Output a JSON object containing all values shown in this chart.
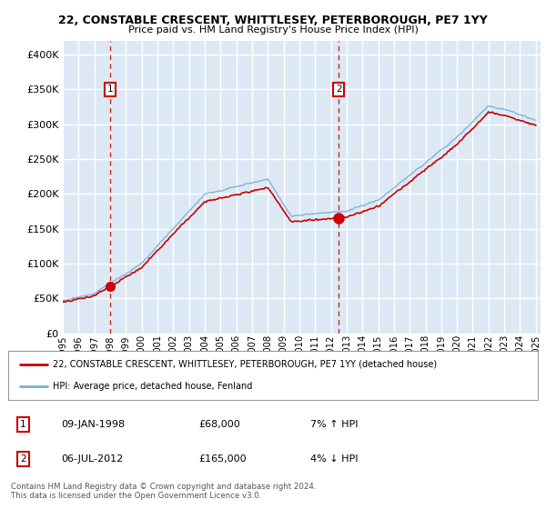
{
  "title": "22, CONSTABLE CRESCENT, WHITTLESEY, PETERBOROUGH, PE7 1YY",
  "subtitle": "Price paid vs. HM Land Registry's House Price Index (HPI)",
  "bg_color": "#dce9f5",
  "grid_color": "#ffffff",
  "sale1_year": 1998.04,
  "sale1_price": 68000,
  "sale2_year": 2012.51,
  "sale2_price": 165000,
  "legend_line1": "22, CONSTABLE CRESCENT, WHITTLESEY, PETERBOROUGH, PE7 1YY (detached house)",
  "legend_line2": "HPI: Average price, detached house, Fenland",
  "annotation1_date": "09-JAN-1998",
  "annotation1_price": "£68,000",
  "annotation1_hpi": "7% ↑ HPI",
  "annotation2_date": "06-JUL-2012",
  "annotation2_price": "£165,000",
  "annotation2_hpi": "4% ↓ HPI",
  "footer": "Contains HM Land Registry data © Crown copyright and database right 2024.\nThis data is licensed under the Open Government Licence v3.0.",
  "red_color": "#cc0000",
  "blue_color": "#7aadd4",
  "dash_color": "#cc0000",
  "ylim": [
    0,
    420000
  ],
  "yticks": [
    0,
    50000,
    100000,
    150000,
    200000,
    250000,
    300000,
    350000,
    400000
  ],
  "xticks": [
    1995,
    1996,
    1997,
    1998,
    1999,
    2000,
    2001,
    2002,
    2003,
    2004,
    2005,
    2006,
    2007,
    2008,
    2009,
    2010,
    2011,
    2012,
    2013,
    2014,
    2015,
    2016,
    2017,
    2018,
    2019,
    2020,
    2021,
    2022,
    2023,
    2024,
    2025
  ],
  "xlim": [
    1995,
    2025.3
  ]
}
